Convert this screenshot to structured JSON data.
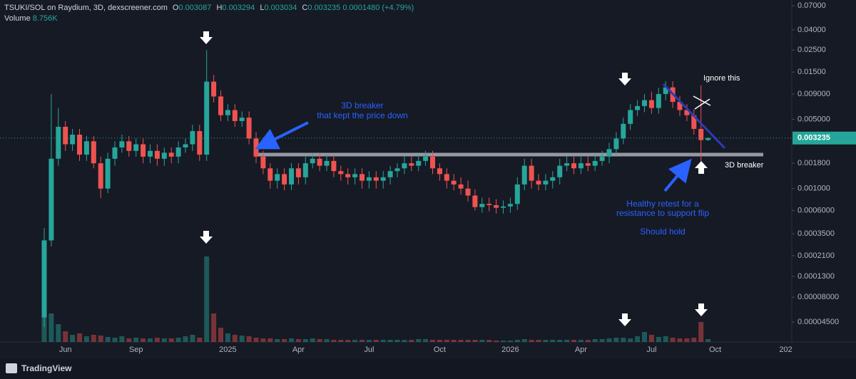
{
  "chart_data": {
    "type": "candlestick",
    "symbol": "TSUKI/SOL on Raydium, 3D, dexscreener.com",
    "legend_labels": [
      "O",
      "H",
      "L",
      "C"
    ],
    "change": "0.0001480 (+4.79%)",
    "volume_label": "Volume",
    "volume_value": "8.756K",
    "categories": [
      null,
      null,
      null,
      "Jun",
      null,
      null,
      null,
      null,
      null,
      null,
      null,
      null,
      null,
      "Sep",
      null,
      null,
      null,
      null,
      null,
      null,
      null,
      null,
      null,
      null,
      null,
      null,
      "2025",
      null,
      null,
      null,
      null,
      null,
      null,
      null,
      null,
      null,
      "Apr",
      null,
      null,
      null,
      null,
      null,
      null,
      null,
      null,
      null,
      "Jul",
      null,
      null,
      null,
      null,
      null,
      null,
      null,
      null,
      null,
      "Oct",
      null,
      null,
      null,
      null,
      null,
      null,
      null,
      null,
      null,
      "2026",
      null,
      null,
      null,
      null,
      null,
      null,
      null,
      null,
      null,
      "Apr",
      null,
      null,
      null,
      null,
      null,
      null,
      null,
      null,
      null,
      "Jul",
      null,
      null,
      null,
      null,
      null,
      null,
      null,
      null,
      "Oct",
      null,
      null,
      null,
      null,
      null,
      null,
      null,
      null,
      null,
      "202"
    ],
    "open": [
      5e-05,
      0.0003,
      0.002,
      0.0042,
      0.0028,
      0.0035,
      0.0022,
      0.003,
      0.0018,
      0.001,
      0.002,
      0.0026,
      0.003,
      0.0024,
      0.0028,
      0.0021,
      0.0024,
      0.002,
      0.0023,
      0.0021,
      0.0026,
      0.0028,
      0.0038,
      0.0022,
      0.012,
      0.0085,
      0.0055,
      0.0062,
      0.0048,
      0.0052,
      0.0032,
      0.0021,
      0.0016,
      0.0012,
      0.0014,
      0.0011,
      0.0016,
      0.0013,
      0.0018,
      0.002,
      0.0017,
      0.0019,
      0.0015,
      0.0014,
      0.0013,
      0.0014,
      0.0012,
      0.0013,
      0.0012,
      0.0013,
      0.0015,
      0.0016,
      0.0018,
      0.0017,
      0.0019,
      0.0021,
      0.0016,
      0.0014,
      0.0012,
      0.0011,
      0.001,
      0.00085,
      0.00065,
      0.0007,
      0.00068,
      0.00064,
      0.00066,
      0.0007,
      0.0011,
      0.0017,
      0.0012,
      0.0011,
      0.0012,
      0.0013,
      0.0017,
      0.0018,
      0.0016,
      0.0018,
      0.0017,
      0.0019,
      0.0021,
      0.0025,
      0.0032,
      0.0045,
      0.0062,
      0.0068,
      0.0078,
      0.0065,
      0.009,
      0.0105,
      0.0075,
      0.0062,
      0.0055,
      0.004,
      0.003087,
      null,
      null,
      null,
      null,
      null,
      null,
      null,
      null,
      null,
      null,
      null
    ],
    "high": [
      0.0004,
      0.009,
      0.0065,
      0.0048,
      0.004,
      0.004,
      0.0034,
      0.0034,
      0.0021,
      0.0023,
      0.003,
      0.0035,
      0.0034,
      0.0032,
      0.0032,
      0.0028,
      0.0028,
      0.0026,
      0.0026,
      0.003,
      0.0032,
      0.0044,
      0.0044,
      0.025,
      0.014,
      0.0098,
      0.0071,
      0.0071,
      0.006,
      0.006,
      0.0037,
      0.0024,
      0.0018,
      0.0016,
      0.0016,
      0.0018,
      0.0018,
      0.0021,
      0.0023,
      0.0023,
      0.0022,
      0.0022,
      0.0017,
      0.0016,
      0.0016,
      0.0016,
      0.0015,
      0.0015,
      0.0015,
      0.0017,
      0.0018,
      0.0021,
      0.0021,
      0.0022,
      0.0024,
      0.0024,
      0.0018,
      0.0016,
      0.0014,
      0.0013,
      0.0012,
      0.00098,
      0.00081,
      0.00081,
      0.00078,
      0.00076,
      0.00081,
      0.0013,
      0.002,
      0.002,
      0.0014,
      0.0014,
      0.0015,
      0.002,
      0.0021,
      0.0021,
      0.0021,
      0.0021,
      0.0022,
      0.0024,
      0.0029,
      0.0037,
      0.0052,
      0.0071,
      0.0078,
      0.009,
      0.0095,
      0.0104,
      0.0121,
      0.0121,
      0.0086,
      0.0071,
      0.0063,
      0.011,
      0.003294,
      null,
      null,
      null,
      null,
      null,
      null,
      null,
      null,
      null,
      null,
      null
    ],
    "low": [
      4e-05,
      0.00026,
      0.0017,
      0.0024,
      0.0024,
      0.0019,
      0.0019,
      0.0016,
      0.0008,
      0.0009,
      0.0017,
      0.0023,
      0.0021,
      0.0021,
      0.0018,
      0.0018,
      0.0017,
      0.0017,
      0.0018,
      0.0018,
      0.0023,
      0.0024,
      0.0019,
      0.0019,
      0.0074,
      0.0048,
      0.0048,
      0.0042,
      0.0042,
      0.0028,
      0.0018,
      0.0014,
      0.001,
      0.001,
      0.00096,
      0.00096,
      0.0011,
      0.0011,
      0.0016,
      0.0015,
      0.0015,
      0.0013,
      0.0012,
      0.0011,
      0.0011,
      0.001,
      0.001,
      0.001,
      0.001,
      0.0011,
      0.0013,
      0.0014,
      0.0015,
      0.0015,
      0.0017,
      0.0014,
      0.0012,
      0.001,
      0.00096,
      0.00087,
      0.00074,
      0.0006,
      0.00057,
      0.00059,
      0.00056,
      0.00056,
      0.00057,
      0.00061,
      0.00096,
      0.001,
      0.00096,
      0.00096,
      0.001,
      0.0011,
      0.0015,
      0.0014,
      0.0014,
      0.0015,
      0.0015,
      0.0017,
      0.0018,
      0.0022,
      0.0028,
      0.0039,
      0.0054,
      0.0059,
      0.0057,
      0.0057,
      0.0078,
      0.0065,
      0.0054,
      0.0048,
      0.0035,
      0.0019,
      0.003034,
      null,
      null,
      null,
      null,
      null,
      null,
      null,
      null,
      null,
      null,
      null
    ],
    "close": [
      0.0003,
      0.002,
      0.0042,
      0.0028,
      0.0035,
      0.0022,
      0.003,
      0.0018,
      0.001,
      0.002,
      0.0026,
      0.003,
      0.0024,
      0.0028,
      0.0021,
      0.0024,
      0.002,
      0.0023,
      0.0021,
      0.0026,
      0.0028,
      0.0038,
      0.0022,
      0.012,
      0.0085,
      0.0055,
      0.0062,
      0.0048,
      0.0052,
      0.0032,
      0.0021,
      0.0016,
      0.0012,
      0.0014,
      0.0011,
      0.0016,
      0.0013,
      0.0018,
      0.002,
      0.0017,
      0.0019,
      0.0015,
      0.0014,
      0.0013,
      0.0014,
      0.0012,
      0.0013,
      0.0012,
      0.0013,
      0.0015,
      0.0016,
      0.0018,
      0.0017,
      0.0019,
      0.0021,
      0.0016,
      0.0014,
      0.0012,
      0.0011,
      0.001,
      0.00085,
      0.00065,
      0.0007,
      0.00068,
      0.00064,
      0.00066,
      0.0007,
      0.0011,
      0.0017,
      0.0012,
      0.0011,
      0.0012,
      0.0013,
      0.0017,
      0.0018,
      0.0016,
      0.0018,
      0.0017,
      0.0019,
      0.0021,
      0.0025,
      0.0032,
      0.0045,
      0.0062,
      0.0068,
      0.0078,
      0.0065,
      0.009,
      0.0105,
      0.0075,
      0.0062,
      0.0055,
      0.004,
      0.003087,
      0.003235,
      null,
      null,
      null,
      null,
      null,
      null,
      null,
      null,
      null,
      null,
      null
    ],
    "volume": [
      60,
      40,
      25,
      15,
      10,
      12,
      8,
      10,
      9,
      7,
      6,
      8,
      5,
      6,
      5,
      5,
      6,
      5,
      5,
      6,
      8,
      10,
      6,
      120,
      40,
      20,
      12,
      10,
      9,
      8,
      6,
      5,
      5,
      4,
      4,
      5,
      4,
      4,
      5,
      4,
      4,
      3,
      3,
      3,
      3,
      3,
      3,
      3,
      3,
      3,
      3,
      3,
      3,
      4,
      4,
      3,
      3,
      3,
      3,
      3,
      3,
      3,
      3,
      3,
      2,
      2,
      2,
      3,
      4,
      3,
      3,
      3,
      3,
      3,
      3,
      3,
      3,
      3,
      4,
      4,
      5,
      6,
      6,
      5,
      8,
      14,
      10,
      7,
      8,
      6,
      5,
      5,
      6,
      28,
      4,
      null,
      null,
      null,
      null,
      null,
      null,
      null,
      null,
      null,
      null,
      null
    ],
    "up_color": "#26a69a",
    "down_color": "#ef5350",
    "log_scale": true,
    "grid": false,
    "ylim": [
      2.83e-05,
      0.08
    ],
    "yticks": [
      {
        "value": 0.07,
        "label": "0.07000"
      },
      {
        "value": 0.04,
        "label": "0.04000"
      },
      {
        "value": 0.025,
        "label": "0.02500"
      },
      {
        "value": 0.015,
        "label": "0.01500"
      },
      {
        "value": 0.009,
        "label": "0.009000"
      },
      {
        "value": 0.005,
        "label": "0.005000"
      },
      {
        "value": 0.0018,
        "label": "0.001800"
      },
      {
        "value": 0.001,
        "label": "0.001000"
      },
      {
        "value": 0.0006,
        "label": "0.0006000"
      },
      {
        "value": 0.00035,
        "label": "0.0003500"
      },
      {
        "value": 0.00021,
        "label": "0.0002100"
      },
      {
        "value": 0.00013,
        "label": "0.0001300"
      },
      {
        "value": 8e-05,
        "label": "0.00008000"
      },
      {
        "value": 4.5e-05,
        "label": "0.00004500"
      }
    ],
    "breaker_level": 0.0022,
    "annotations": {
      "breaker_left": [
        "3D breaker",
        "that kept the price down"
      ],
      "ignore": "Ignore this",
      "breaker_right": "3D breaker",
      "retest": [
        "Healthy retest for a",
        "resistance to support flip"
      ],
      "hold": "Should hold"
    },
    "brand": "TradingView"
  }
}
